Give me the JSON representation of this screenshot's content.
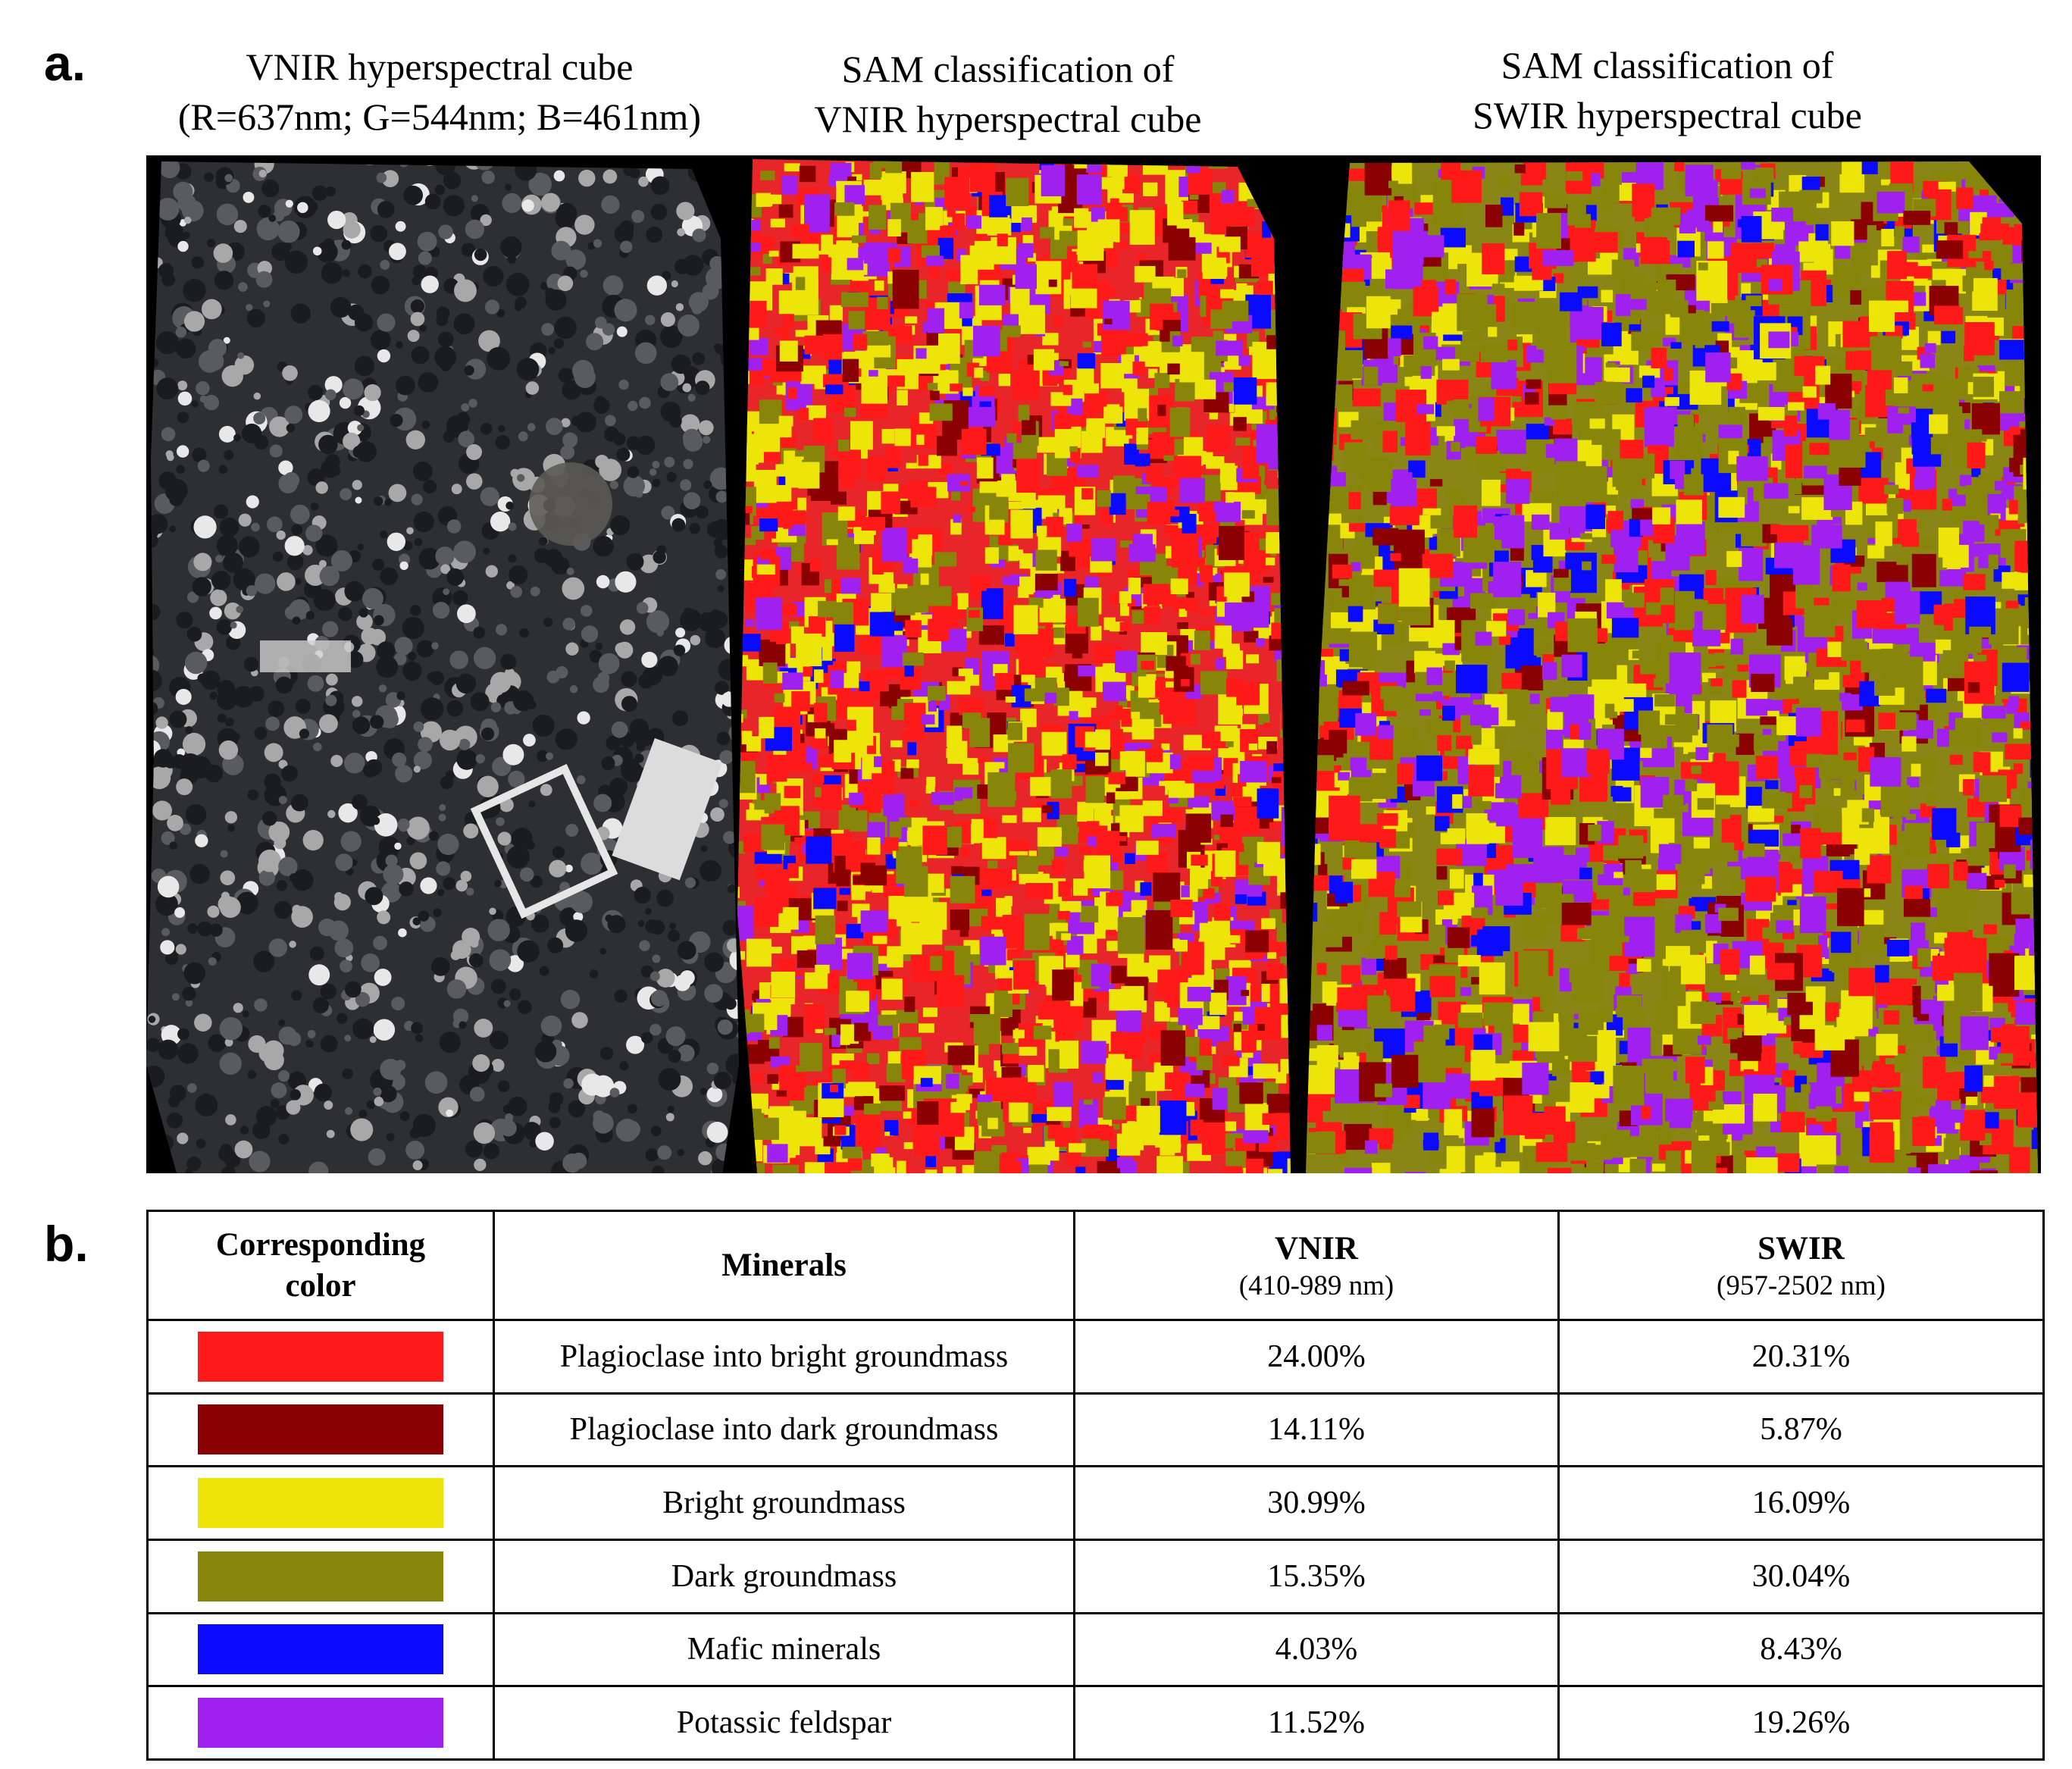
{
  "panel_a": {
    "letter": "a.",
    "captions": [
      {
        "line1": "VNIR hyperspectral cube",
        "line2": "(R=637nm; G=544nm; B=461nm)"
      },
      {
        "line1": "SAM classification of",
        "line2": "VNIR hyperspectral cube"
      },
      {
        "line1": "SAM classification of",
        "line2": "SWIR hyperspectral cube"
      }
    ]
  },
  "panel_b": {
    "letter": "b.",
    "headers": {
      "color": "Corresponding color",
      "minerals": "Minerals",
      "vnir": "VNIR",
      "vnir_range": "(410-989 nm)",
      "swir": "SWIR",
      "swir_range": "(957-2502 nm)"
    },
    "rows": [
      {
        "color": "#ff1a1a",
        "mineral": "Plagioclase into bright groundmass",
        "vnir": "24.00%",
        "swir": "20.31%"
      },
      {
        "color": "#8b0000",
        "mineral": "Plagioclase into dark groundmass",
        "vnir": "14.11%",
        "swir": "5.87%"
      },
      {
        "color": "#ede40a",
        "mineral": "Bright groundmass",
        "vnir": "30.99%",
        "swir": "16.09%"
      },
      {
        "color": "#87860a",
        "mineral": "Dark groundmass",
        "vnir": "15.35%",
        "swir": "30.04%"
      },
      {
        "color": "#0a0aff",
        "mineral": "Mafic minerals",
        "vnir": "4.03%",
        "swir": "8.43%"
      },
      {
        "color": "#a020f0",
        "mineral": "Potassic feldspar",
        "vnir": "11.52%",
        "swir": "19.26%"
      }
    ]
  }
}
